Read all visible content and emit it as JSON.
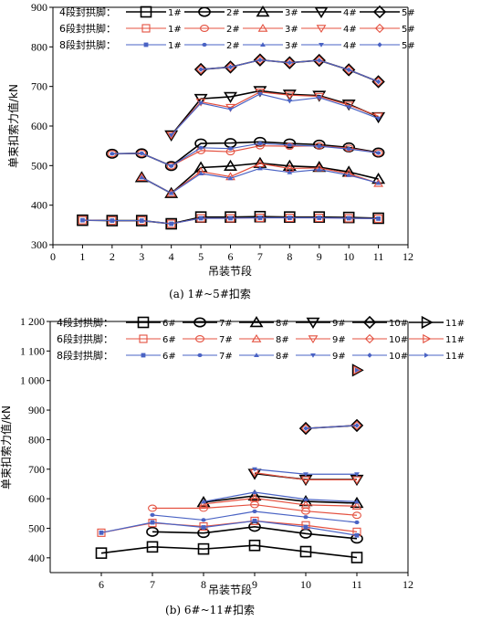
{
  "chart_data": [
    {
      "type": "line",
      "caption": "(a) 1#~5#扣索",
      "xlabel": "吊装节段",
      "ylabel": "单束扣索力值/kN",
      "xlim": [
        0,
        12
      ],
      "ylim": [
        300,
        900
      ],
      "xticks": [
        0,
        1,
        2,
        3,
        4,
        5,
        6,
        7,
        8,
        9,
        10,
        11,
        12
      ],
      "yticks": [
        300,
        400,
        500,
        600,
        700,
        800,
        900
      ],
      "ytick_labels": [
        "300",
        "400",
        "500",
        "600",
        "700",
        "800",
        "900"
      ],
      "groups": [
        {
          "label": "4段封拱脚：",
          "color": "#000000",
          "style": "open",
          "size": 11
        },
        {
          "label": "6段封拱脚：",
          "color": "#e4503f",
          "style": "open",
          "size": 8
        },
        {
          "label": "8段封拱脚：",
          "color": "#4a63c4",
          "style": "filled",
          "size": 4
        }
      ],
      "legend_names": [
        "1#",
        "2#",
        "3#",
        "4#",
        "5#"
      ],
      "legend_markers": [
        "square",
        "circle",
        "triangle-up",
        "triangle-down",
        "diamond"
      ],
      "series": [
        {
          "name": "1#",
          "marker": "square",
          "x": [
            1,
            2,
            3,
            4,
            5,
            6,
            7,
            8,
            9,
            10,
            11
          ],
          "groups": [
            [
              362,
              361,
              361,
              353,
              370,
              370,
              371,
              370,
              370,
              369,
              367
            ],
            [
              362,
              361,
              361,
              353,
              367,
              367,
              368,
              368,
              368,
              367,
              366
            ],
            [
              362,
              361,
              361,
              353,
              367,
              367,
              368,
              368,
              368,
              367,
              366
            ]
          ]
        },
        {
          "name": "2#",
          "marker": "circle",
          "x": [
            2,
            3,
            4,
            5,
            6,
            7,
            8,
            9,
            10,
            11
          ],
          "groups": [
            [
              530,
              531,
              499,
              556,
              557,
              560,
              556,
              553,
              546,
              533
            ],
            [
              530,
              531,
              499,
              538,
              535,
              550,
              549,
              550,
              544,
              532
            ],
            [
              530,
              531,
              499,
              545,
              543,
              556,
              552,
              549,
              542,
              532
            ]
          ]
        },
        {
          "name": "3#",
          "marker": "triangle-up",
          "x": [
            3,
            4,
            5,
            6,
            7,
            8,
            9,
            10,
            11
          ],
          "groups": [
            [
              470,
              430,
              495,
              499,
              506,
              499,
              496,
              484,
              466
            ],
            [
              470,
              430,
              485,
              472,
              505,
              493,
              494,
              480,
              455
            ],
            [
              470,
              430,
              480,
              468,
              493,
              483,
              490,
              476,
              456
            ]
          ]
        },
        {
          "name": "4#",
          "marker": "triangle-down",
          "x": [
            4,
            5,
            6,
            7,
            8,
            9,
            10,
            11
          ],
          "groups": [
            [
              577,
              669,
              674,
              689,
              680,
              677,
              655,
              623
            ],
            [
              577,
              661,
              647,
              686,
              678,
              675,
              653,
              625
            ],
            [
              577,
              658,
              642,
              681,
              663,
              672,
              648,
              619
            ]
          ]
        },
        {
          "name": "5#",
          "marker": "diamond",
          "x": [
            5,
            6,
            7,
            8,
            9,
            10,
            11
          ],
          "groups": [
            [
              743,
              749,
              767,
              760,
              766,
              742,
              712
            ],
            [
              743,
              749,
              767,
              760,
              766,
              742,
              712
            ],
            [
              743,
              749,
              767,
              760,
              766,
              742,
              712
            ]
          ]
        }
      ]
    },
    {
      "type": "line",
      "caption": "(b) 6#~11#扣索",
      "xlabel": "吊装节段",
      "ylabel": "单束扣索力值/kN",
      "xlim": [
        5,
        12
      ],
      "ylim": [
        350,
        1200
      ],
      "xticks": [
        6,
        7,
        8,
        9,
        10,
        11,
        12
      ],
      "yticks": [
        400,
        500,
        600,
        700,
        800,
        900,
        1000,
        1100,
        1200
      ],
      "ytick_labels": [
        "400",
        "500",
        "600",
        "700",
        "800",
        "900",
        "1 000",
        "1 100",
        "1 200"
      ],
      "groups": [
        {
          "label": "4段封拱脚：",
          "color": "#000000",
          "style": "open",
          "size": 11
        },
        {
          "label": "6段封拱脚：",
          "color": "#e4503f",
          "style": "open",
          "size": 8
        },
        {
          "label": "8段封拱脚：",
          "color": "#4a63c4",
          "style": "filled",
          "size": 4
        }
      ],
      "legend_names": [
        "6#",
        "7#",
        "8#",
        "9#",
        "10#",
        "11#"
      ],
      "legend_markers": [
        "square",
        "circle",
        "triangle-up",
        "triangle-down",
        "diamond",
        "triangle-right"
      ],
      "series": [
        {
          "name": "6#",
          "marker": "square",
          "x": [
            6,
            7,
            8,
            9,
            10,
            11
          ],
          "groups": [
            [
              416,
              437,
              430,
              442,
              421,
              401
            ],
            [
              485,
              518,
              506,
              525,
              510,
              488
            ],
            [
              485,
              520,
              503,
              525,
              504,
              476
            ]
          ]
        },
        {
          "name": "7#",
          "marker": "circle",
          "x": [
            7,
            8,
            9,
            10,
            11
          ],
          "groups": [
            [
              488,
              484,
              505,
              482,
              465
            ],
            [
              568,
              568,
              580,
              558,
              544
            ],
            [
              545,
              528,
              557,
              538,
              520
            ]
          ]
        },
        {
          "name": "8#",
          "marker": "triangle-up",
          "x": [
            8,
            9,
            10,
            11
          ],
          "groups": [
            [
              588,
              610,
              591,
              585
            ],
            [
              582,
              602,
              579,
              575
            ],
            [
              590,
              622,
              598,
              590
            ]
          ]
        },
        {
          "name": "9#",
          "marker": "triangle-down",
          "x": [
            9,
            10,
            11
          ],
          "groups": [
            [
              685,
              665,
              665
            ],
            [
              688,
              664,
              664
            ],
            [
              700,
              683,
              683
            ]
          ]
        },
        {
          "name": "10#",
          "marker": "diamond",
          "x": [
            10,
            11
          ],
          "groups": [
            [
              838,
              848
            ],
            [
              838,
              848
            ],
            [
              838,
              848
            ]
          ]
        },
        {
          "name": "11#",
          "marker": "triangle-right",
          "x": [
            11
          ],
          "groups": [
            [
              1035
            ],
            [
              1035
            ],
            [
              1035
            ]
          ]
        }
      ]
    }
  ]
}
